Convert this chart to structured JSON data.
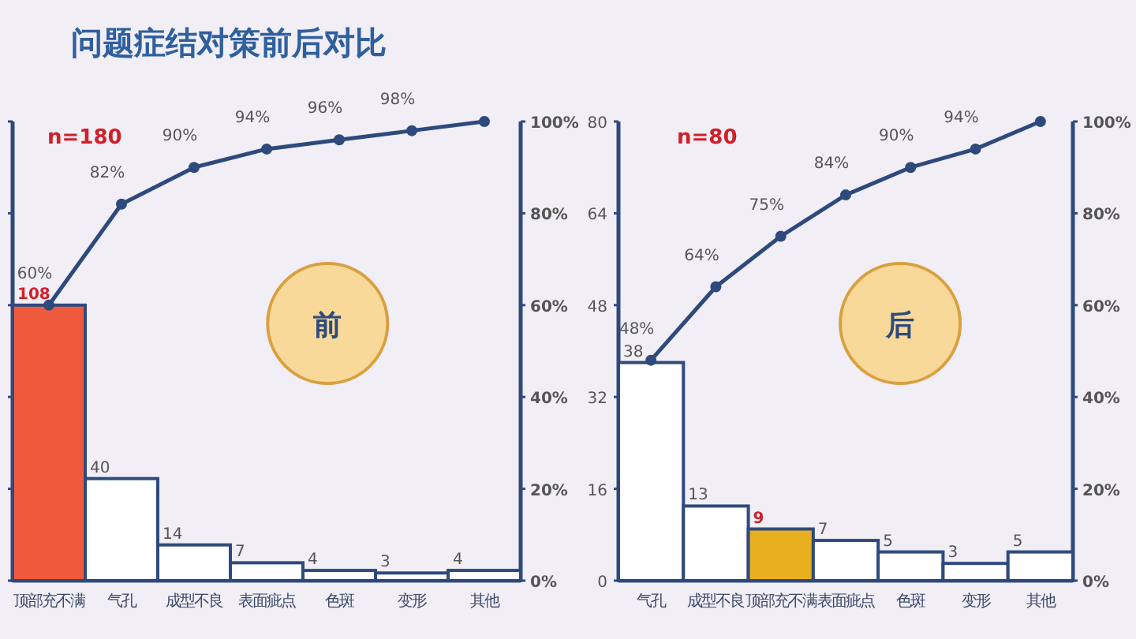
{
  "chart_data": [
    {
      "type": "bar",
      "title": "问题症结对策前后对比",
      "categories": [
        "顶部充不满",
        "气孔",
        "成型不良",
        "表面疵点",
        "色斑",
        "变形",
        "其他"
      ],
      "series": [
        {
          "type": "bar",
          "colors": [
            "#f05a3c",
            "#ffffff",
            "#ffffff",
            "#ffffff",
            "#ffffff",
            "#ffffff",
            "#ffffff"
          ],
          "values": [
            108,
            40,
            14,
            7,
            4,
            3,
            4
          ]
        },
        {
          "type": "line",
          "axis": "y2",
          "color": "#2e4a7d",
          "values": [
            60,
            82,
            90,
            94,
            96,
            98,
            100
          ],
          "value_labels": [
            "60%",
            "82%",
            "90%",
            "94%",
            "96%",
            "98%",
            null
          ]
        }
      ],
      "ylim": [
        0,
        180
      ],
      "yticks": [
        {
          "value": 0,
          "label": null
        },
        {
          "value": 36,
          "label": null
        },
        {
          "value": 72,
          "label": null
        },
        {
          "value": 108,
          "label": null
        },
        {
          "value": 144,
          "label": null
        },
        {
          "value": 180,
          "label": null
        }
      ],
      "y2lim": [
        0,
        100
      ],
      "y2ticks": [
        {
          "value": 0,
          "label": "0%"
        },
        {
          "value": 20,
          "label": "20%"
        },
        {
          "value": 40,
          "label": "40%"
        },
        {
          "value": 60,
          "label": "60%"
        },
        {
          "value": 80,
          "label": "80%"
        },
        {
          "value": 100,
          "label": "100%"
        }
      ],
      "data_labels": true,
      "marker": "circle",
      "annotations": [
        "n=180",
        "前"
      ]
    },
    {
      "type": "bar",
      "categories": [
        "气孔",
        "成型不良",
        "顶部充不满",
        "表面疵点",
        "色斑",
        "变形",
        "其他"
      ],
      "series": [
        {
          "type": "bar",
          "colors": [
            "#ffffff",
            "#ffffff",
            "#e8b020",
            "#ffffff",
            "#ffffff",
            "#ffffff",
            "#ffffff"
          ],
          "values": [
            38,
            13,
            9,
            7,
            5,
            3,
            5
          ]
        },
        {
          "type": "line",
          "axis": "y2",
          "color": "#2e4a7d",
          "values": [
            48,
            64,
            75,
            84,
            90,
            94,
            100
          ],
          "value_labels": [
            "48%",
            "64%",
            "75%",
            "84%",
            "90%",
            "94%",
            null
          ]
        }
      ],
      "ylim": [
        0,
        80
      ],
      "yticks": [
        0,
        16,
        32,
        48,
        64,
        80
      ],
      "y2lim": [
        0,
        100
      ],
      "y2ticks": [
        {
          "value": 0,
          "label": "0%"
        },
        {
          "value": 20,
          "label": "20%"
        },
        {
          "value": 40,
          "label": "40%"
        },
        {
          "value": 60,
          "label": "60%"
        },
        {
          "value": 80,
          "label": "80%"
        },
        {
          "value": 100,
          "label": "100%"
        }
      ],
      "data_labels": true,
      "marker": "circle",
      "annotations": [
        "n=80",
        "后"
      ]
    }
  ]
}
